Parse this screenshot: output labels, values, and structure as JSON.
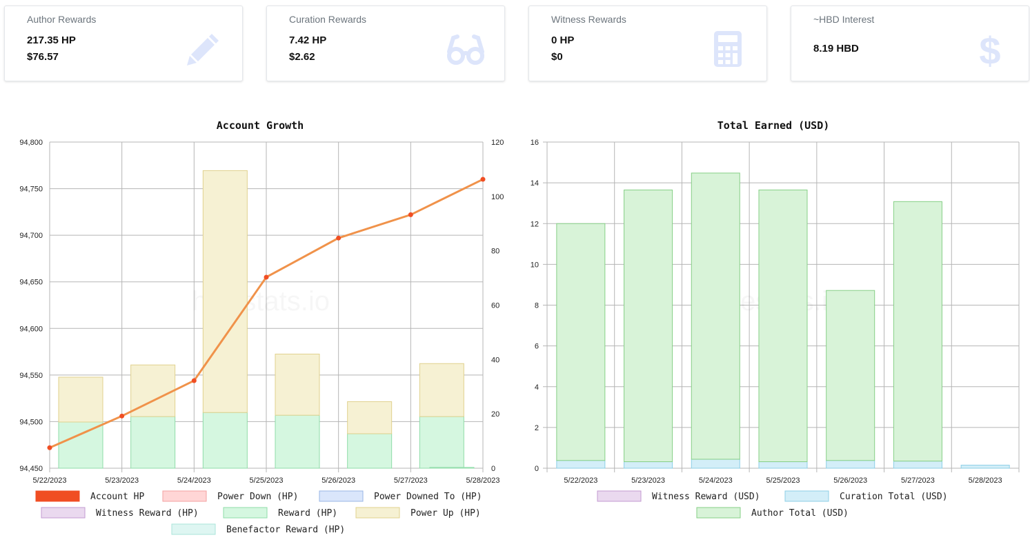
{
  "cards": [
    {
      "title": "Author Rewards",
      "line1": "217.35 HP",
      "line2": "$76.57",
      "icon": "pencil-icon"
    },
    {
      "title": "Curation Rewards",
      "line1": "7.42 HP",
      "line2": "$2.62",
      "icon": "glasses-icon"
    },
    {
      "title": "Witness Rewards",
      "line1": "0 HP",
      "line2": "$0",
      "icon": "calculator-icon"
    },
    {
      "title": "~HBD Interest",
      "line1": "8.19 HBD",
      "icon": "dollar-icon"
    }
  ],
  "colors": {
    "icon": "#dde5fb",
    "account_hp": "#f04e23",
    "growth_line": "#f0924a"
  },
  "watermark": "hivestats.io",
  "chart_data": [
    {
      "type": "bar",
      "title": "Account Growth",
      "categories": [
        "5/22/2023",
        "5/23/2023",
        "5/24/2023",
        "5/25/2023",
        "5/26/2023",
        "5/27/2023",
        "5/28/2023"
      ],
      "y_left": {
        "min": 94450,
        "max": 94800,
        "ticks": [
          "94,450",
          "94,500",
          "94,550",
          "94,600",
          "94,650",
          "94,700",
          "94,750",
          "94,800"
        ]
      },
      "y_right": {
        "min": 0,
        "max": 120,
        "ticks": [
          "0",
          "20",
          "40",
          "60",
          "80",
          "100",
          "120"
        ]
      },
      "series": [
        {
          "name": "Account HP",
          "type": "line",
          "axis": "left",
          "color": "#f04e23",
          "values": [
            94472,
            94506,
            94544,
            94655,
            94697,
            94722,
            94760
          ]
        },
        {
          "name": "Power Down (HP)",
          "type": "bar",
          "axis": "right",
          "fill": "#ffd6d6",
          "stroke": "#f3a0a0",
          "values": [
            0,
            0,
            0,
            0,
            0,
            0,
            0
          ]
        },
        {
          "name": "Power Downed To (HP)",
          "type": "bar",
          "axis": "right",
          "fill": "#dae6fb",
          "stroke": "#98b6e6",
          "values": [
            0,
            0,
            0,
            0,
            0,
            0,
            0
          ]
        },
        {
          "name": "Witness Reward (HP)",
          "type": "bar",
          "axis": "right",
          "fill": "#ead9ef",
          "stroke": "#c39ad0",
          "values": [
            0,
            0,
            0,
            0,
            0,
            0,
            0
          ]
        },
        {
          "name": "Reward (HP)",
          "type": "bar",
          "axis": "right",
          "fill": "#d5f7e0",
          "stroke": "#8fdca8",
          "values": [
            17,
            19,
            20.5,
            19.5,
            12.7,
            19,
            0.3
          ]
        },
        {
          "name": "Power Up (HP)",
          "type": "bar",
          "axis": "right",
          "fill": "#f6f1d3",
          "stroke": "#e0d18e",
          "values": [
            16.5,
            19,
            89,
            22.5,
            11.8,
            19.5,
            0
          ]
        },
        {
          "name": "Benefactor Reward (HP)",
          "type": "bar",
          "axis": "right",
          "fill": "#def6f2",
          "stroke": "#a9e4da",
          "values": [
            0,
            0,
            0,
            0,
            0,
            0,
            0
          ]
        }
      ]
    },
    {
      "type": "bar",
      "title": "Total Earned (USD)",
      "categories": [
        "5/22/2023",
        "5/23/2023",
        "5/24/2023",
        "5/25/2023",
        "5/26/2023",
        "5/27/2023",
        "5/28/2023"
      ],
      "ylim": [
        0,
        16
      ],
      "y_ticks": [
        "0",
        "2",
        "4",
        "6",
        "8",
        "10",
        "12",
        "14",
        "16"
      ],
      "series": [
        {
          "name": "Witness Reward (USD)",
          "fill": "#ead9ef",
          "stroke": "#c39ad0",
          "values": [
            0,
            0,
            0,
            0,
            0,
            0,
            0
          ]
        },
        {
          "name": "Curation Total (USD)",
          "fill": "#d3eef8",
          "stroke": "#8ccfe6",
          "values": [
            0.38,
            0.32,
            0.44,
            0.32,
            0.38,
            0.35,
            0.15
          ]
        },
        {
          "name": "Author Total (USD)",
          "fill": "#d8f3d8",
          "stroke": "#86cf86",
          "values": [
            11.62,
            13.33,
            14.04,
            13.33,
            8.34,
            12.73,
            0
          ]
        }
      ]
    }
  ]
}
